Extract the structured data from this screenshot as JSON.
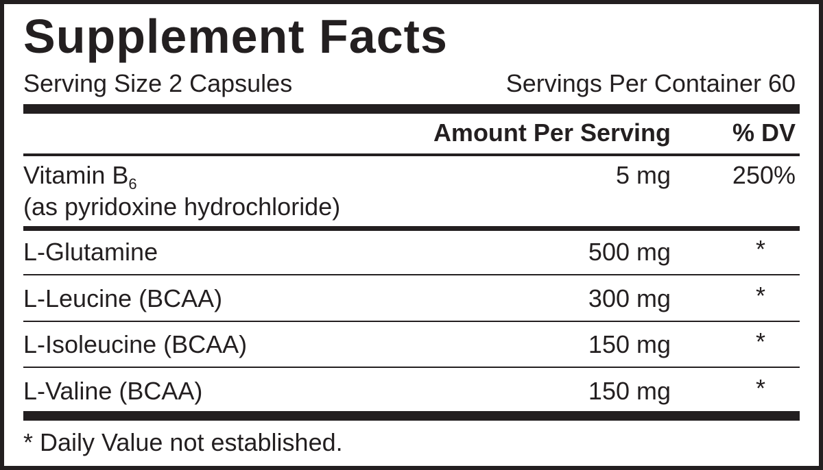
{
  "header": {
    "title": "Supplement Facts",
    "serving_size": "Serving Size 2 Capsules",
    "servings_per_container": "Servings Per Container 60"
  },
  "table": {
    "columns": {
      "amount": "Amount Per Serving",
      "dv": "% DV"
    },
    "first_row": {
      "name": "Vitamin B",
      "subscript": "6",
      "note": "(as pyridoxine hydrochloride)",
      "amount": "5 mg",
      "dv": "250%"
    },
    "rows": [
      {
        "name": "L-Glutamine",
        "amount": "500 mg",
        "dv": "*"
      },
      {
        "name": "L-Leucine (BCAA)",
        "amount": "300 mg",
        "dv": "*"
      },
      {
        "name": "L-Isoleucine (BCAA)",
        "amount": "150 mg",
        "dv": "*"
      },
      {
        "name": "L-Valine (BCAA)",
        "amount": "150 mg",
        "dv": "*"
      }
    ]
  },
  "footnote": "* Daily Value not established."
}
